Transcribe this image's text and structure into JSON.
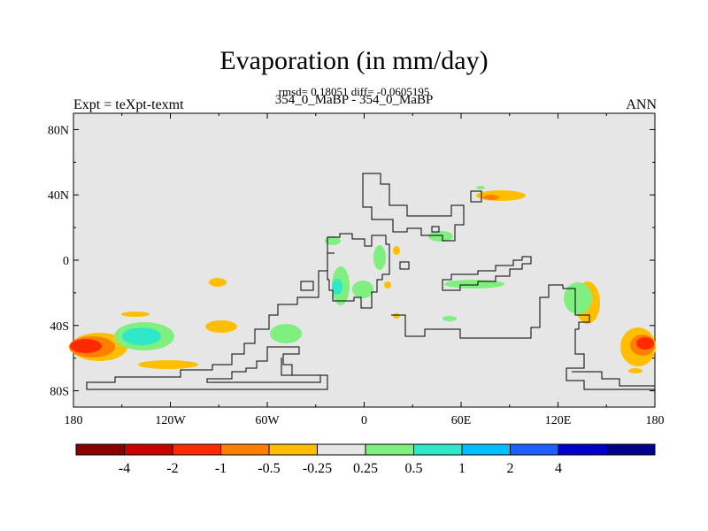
{
  "map": {
    "title": "Evaporation (in mm/day)",
    "stats": "rmsd= 0.18051 diff= -0.0605195",
    "subtitle": "354_0_MaBP - 354_0_MaBP",
    "left_label": "Expt = teXpt-texmt",
    "right_label": "ANN",
    "colors": {
      "land_outline": "#000000",
      "neutral_fill": "#e6e6e6"
    },
    "lat_ticks": [
      {
        "value": 80,
        "label": "80N"
      },
      {
        "value": 40,
        "label": "40N"
      },
      {
        "value": 0,
        "label": "0"
      },
      {
        "value": -40,
        "label": "40S"
      },
      {
        "value": -80,
        "label": "80S"
      }
    ],
    "lon_ticks": [
      {
        "value": -180,
        "label": "180"
      },
      {
        "value": -120,
        "label": "120W"
      },
      {
        "value": -60,
        "label": "60W"
      },
      {
        "value": 0,
        "label": "0"
      },
      {
        "value": 60,
        "label": "60E"
      },
      {
        "value": 120,
        "label": "120E"
      },
      {
        "value": 180,
        "label": "180"
      }
    ]
  },
  "colorbar": {
    "boxes": [
      "#8b0000",
      "#cc0000",
      "#ff2a00",
      "#ff7f00",
      "#ffbf00",
      "#e6e6e6",
      "#7ff07f",
      "#2ee8c8",
      "#00bfff",
      "#1e5fff",
      "#0000cd",
      "#00008b"
    ],
    "labels": [
      "-4",
      "-2",
      "-1",
      "-0.5",
      "-0.25",
      "0.25",
      "0.5",
      "1",
      "2",
      "4"
    ],
    "label_colors": [
      "#000000",
      "#000000",
      "#000000",
      "#000000",
      "#000000",
      "#000000",
      "#000000",
      "#000000",
      "#000000",
      "#000000"
    ]
  }
}
